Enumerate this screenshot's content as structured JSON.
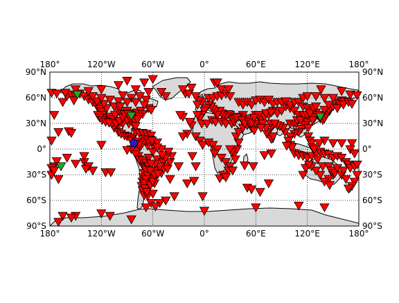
{
  "map": {
    "projection": "equirectangular",
    "ocean_color": "#ffffff",
    "land_color": "#d9d9d9",
    "coastline_color": "#000000",
    "grid": true,
    "lon_ticks": [
      {
        "lon": -180,
        "label": "180°"
      },
      {
        "lon": -120,
        "label": "120°W"
      },
      {
        "lon": -60,
        "label": "60°W"
      },
      {
        "lon": 0,
        "label": "0°"
      },
      {
        "lon": 60,
        "label": "60°E"
      },
      {
        "lon": 120,
        "label": "120°E"
      },
      {
        "lon": 180,
        "label": "180°"
      }
    ],
    "lat_ticks": [
      {
        "lat": 90,
        "label": "90°N"
      },
      {
        "lat": 60,
        "label": "60°N"
      },
      {
        "lat": 30,
        "label": "30°N"
      },
      {
        "lat": 0,
        "label": "0°"
      },
      {
        "lat": -30,
        "label": "30°S"
      },
      {
        "lat": -60,
        "label": "60°S"
      },
      {
        "lat": -90,
        "label": "90°S"
      }
    ]
  },
  "legend_colors": {
    "station_red": "#ff0000",
    "station_green": "#22aa22",
    "event_blue": "#1f1fcf"
  },
  "event": {
    "lon": -82,
    "lat": 7
  },
  "green_stations": [
    [
      -148,
      64
    ],
    [
      -85,
      39
    ],
    [
      135,
      38
    ],
    [
      -167,
      -20
    ]
  ],
  "red_stations": [
    [
      -165,
      55
    ],
    [
      -160,
      62
    ],
    [
      -155,
      64
    ],
    [
      -150,
      62
    ],
    [
      -145,
      65
    ],
    [
      -140,
      62
    ],
    [
      -135,
      58
    ],
    [
      -130,
      55
    ],
    [
      -125,
      50
    ],
    [
      -122,
      47
    ],
    [
      -120,
      44
    ],
    [
      -118,
      40
    ],
    [
      -116,
      36
    ],
    [
      -112,
      33
    ],
    [
      -110,
      38
    ],
    [
      -106,
      35
    ],
    [
      -104,
      40
    ],
    [
      -100,
      45
    ],
    [
      -96,
      42
    ],
    [
      -92,
      38
    ],
    [
      -90,
      45
    ],
    [
      -86,
      42
    ],
    [
      -82,
      40
    ],
    [
      -78,
      43
    ],
    [
      -74,
      45
    ],
    [
      -72,
      41
    ],
    [
      -76,
      38
    ],
    [
      -80,
      35
    ],
    [
      -84,
      33
    ],
    [
      -88,
      30
    ],
    [
      -95,
      30
    ],
    [
      -100,
      28
    ],
    [
      -105,
      25
    ],
    [
      -108,
      30
    ],
    [
      -114,
      48
    ],
    [
      -117,
      53
    ],
    [
      -125,
      56
    ],
    [
      -130,
      62
    ],
    [
      -120,
      60
    ],
    [
      -110,
      58
    ],
    [
      -100,
      56
    ],
    [
      -95,
      63
    ],
    [
      -85,
      60
    ],
    [
      -80,
      55
    ],
    [
      -75,
      62
    ],
    [
      -68,
      58
    ],
    [
      -65,
      48
    ],
    [
      -62,
      46
    ],
    [
      -70,
      52
    ],
    [
      -90,
      55
    ],
    [
      -105,
      50
    ],
    [
      -98,
      50
    ],
    [
      -90,
      34
    ],
    [
      -100,
      20
    ],
    [
      -97,
      18
    ],
    [
      -93,
      16
    ],
    [
      -90,
      15
    ],
    [
      -87,
      14
    ],
    [
      -84,
      12
    ],
    [
      -80,
      20
    ],
    [
      -76,
      19
    ],
    [
      -72,
      19
    ],
    [
      -67,
      18
    ],
    [
      -62,
      16
    ],
    [
      -63,
      11
    ],
    [
      -70,
      12
    ],
    [
      -75,
      9
    ],
    [
      -78,
      2
    ],
    [
      -79,
      -2
    ],
    [
      -77,
      -8
    ],
    [
      -75,
      -14
    ],
    [
      -71,
      -17
    ],
    [
      -70,
      -22
    ],
    [
      -70,
      -28
    ],
    [
      -71,
      -33
    ],
    [
      -72,
      -38
    ],
    [
      -73,
      -43
    ],
    [
      -72,
      -48
    ],
    [
      -70,
      -54
    ],
    [
      -66,
      -55
    ],
    [
      -60,
      -52
    ],
    [
      -65,
      -45
    ],
    [
      -65,
      -38
    ],
    [
      -62,
      -32
    ],
    [
      -58,
      -34
    ],
    [
      -55,
      -25
    ],
    [
      -50,
      -28
    ],
    [
      -47,
      -23
    ],
    [
      -44,
      -20
    ],
    [
      -40,
      -15
    ],
    [
      -38,
      -8
    ],
    [
      -42,
      -3
    ],
    [
      -50,
      0
    ],
    [
      -60,
      -3
    ],
    [
      -65,
      -10
    ],
    [
      -55,
      -12
    ],
    [
      -60,
      5
    ],
    [
      -55,
      8
    ],
    [
      -66,
      4
    ],
    [
      -58,
      -40
    ],
    [
      -52,
      -63
    ],
    [
      -62,
      -63
    ],
    [
      -57,
      -67
    ],
    [
      -45,
      -60
    ],
    [
      -35,
      -55
    ],
    [
      -68,
      -68
    ],
    [
      -85,
      -82
    ],
    [
      -110,
      -78
    ],
    [
      -120,
      -75
    ],
    [
      -150,
      -78
    ],
    [
      -155,
      -80
    ],
    [
      -165,
      -78
    ],
    [
      -170,
      -85
    ],
    [
      -175,
      40
    ],
    [
      -170,
      20
    ],
    [
      -158,
      21
    ],
    [
      -155,
      19
    ],
    [
      -160,
      -10
    ],
    [
      -150,
      -17
    ],
    [
      -140,
      -15
    ],
    [
      -130,
      -25
    ],
    [
      -120,
      5
    ],
    [
      -175,
      -20
    ],
    [
      -178,
      -30
    ],
    [
      -162,
      66
    ],
    [
      -152,
      57
    ],
    [
      -115,
      -27
    ],
    [
      -85,
      0
    ],
    [
      -90,
      -1
    ],
    [
      -55,
      2
    ],
    [
      -25,
      38
    ],
    [
      -20,
      18
    ],
    [
      -22,
      65
    ],
    [
      -18,
      65
    ],
    [
      -15,
      28
    ],
    [
      -10,
      15
    ],
    [
      -5,
      10
    ],
    [
      -2,
      5
    ],
    [
      5,
      8
    ],
    [
      10,
      5
    ],
    [
      15,
      0
    ],
    [
      12,
      -5
    ],
    [
      20,
      -10
    ],
    [
      25,
      -15
    ],
    [
      30,
      -20
    ],
    [
      28,
      -25
    ],
    [
      22,
      -30
    ],
    [
      18,
      -34
    ],
    [
      25,
      -33
    ],
    [
      35,
      -5
    ],
    [
      38,
      0
    ],
    [
      40,
      8
    ],
    [
      37,
      15
    ],
    [
      40,
      20
    ],
    [
      45,
      25
    ],
    [
      50,
      28
    ],
    [
      55,
      25
    ],
    [
      58,
      22
    ],
    [
      60,
      30
    ],
    [
      65,
      35
    ],
    [
      70,
      38
    ],
    [
      75,
      40
    ],
    [
      80,
      45
    ],
    [
      85,
      42
    ],
    [
      90,
      45
    ],
    [
      95,
      50
    ],
    [
      100,
      48
    ],
    [
      105,
      45
    ],
    [
      110,
      40
    ],
    [
      115,
      38
    ],
    [
      118,
      35
    ],
    [
      120,
      32
    ],
    [
      117,
      28
    ],
    [
      113,
      24
    ],
    [
      110,
      20
    ],
    [
      105,
      18
    ],
    [
      100,
      15
    ],
    [
      98,
      10
    ],
    [
      100,
      5
    ],
    [
      102,
      2
    ],
    [
      105,
      -5
    ],
    [
      110,
      -7
    ],
    [
      115,
      -8
    ],
    [
      120,
      -10
    ],
    [
      125,
      -8
    ],
    [
      130,
      -5
    ],
    [
      135,
      -3
    ],
    [
      140,
      -5
    ],
    [
      145,
      -6
    ],
    [
      150,
      -10
    ],
    [
      155,
      -8
    ],
    [
      160,
      -10
    ],
    [
      165,
      -15
    ],
    [
      168,
      -18
    ],
    [
      170,
      -22
    ],
    [
      175,
      -20
    ],
    [
      178,
      -18
    ],
    [
      -178,
      -22
    ],
    [
      -175,
      -25
    ],
    [
      178,
      -30
    ],
    [
      175,
      -38
    ],
    [
      172,
      -43
    ],
    [
      168,
      -46
    ],
    [
      150,
      -30
    ],
    [
      145,
      -35
    ],
    [
      140,
      -38
    ],
    [
      135,
      -30
    ],
    [
      130,
      -25
    ],
    [
      125,
      -20
    ],
    [
      118,
      -22
    ],
    [
      115,
      -30
    ],
    [
      122,
      -18
    ],
    [
      132,
      -12
    ],
    [
      138,
      -20
    ],
    [
      145,
      -20
    ],
    [
      148,
      -25
    ],
    [
      152,
      -28
    ],
    [
      155,
      -22
    ],
    [
      160,
      -30
    ],
    [
      165,
      -35
    ],
    [
      162,
      -25
    ],
    [
      146,
      -42
    ],
    [
      140,
      -68
    ],
    [
      110,
      -66
    ],
    [
      60,
      -68
    ],
    [
      0,
      -72
    ],
    [
      -2,
      -55
    ],
    [
      50,
      -45
    ],
    [
      55,
      -47
    ],
    [
      65,
      -50
    ],
    [
      75,
      -40
    ],
    [
      78,
      -5
    ],
    [
      70,
      -7
    ],
    [
      57,
      -20
    ],
    [
      47,
      -19
    ],
    [
      32,
      -3
    ],
    [
      30,
      0
    ],
    [
      36,
      -12
    ],
    [
      33,
      -25
    ],
    [
      60,
      40
    ],
    [
      50,
      36
    ],
    [
      45,
      40
    ],
    [
      40,
      38
    ],
    [
      30,
      40
    ],
    [
      28,
      41
    ],
    [
      25,
      38
    ],
    [
      22,
      40
    ],
    [
      20,
      42
    ],
    [
      18,
      45
    ],
    [
      15,
      40
    ],
    [
      12,
      45
    ],
    [
      10,
      47
    ],
    [
      8,
      50
    ],
    [
      5,
      52
    ],
    [
      2,
      48
    ],
    [
      0,
      45
    ],
    [
      -3,
      40
    ],
    [
      -5,
      37
    ],
    [
      -8,
      40
    ],
    [
      -3,
      55
    ],
    [
      -6,
      57
    ],
    [
      5,
      60
    ],
    [
      10,
      60
    ],
    [
      15,
      62
    ],
    [
      20,
      63
    ],
    [
      25,
      65
    ],
    [
      30,
      62
    ],
    [
      12,
      78
    ],
    [
      15,
      78
    ],
    [
      40,
      55
    ],
    [
      45,
      52
    ],
    [
      50,
      55
    ],
    [
      55,
      52
    ],
    [
      60,
      57
    ],
    [
      65,
      58
    ],
    [
      70,
      55
    ],
    [
      75,
      58
    ],
    [
      80,
      53
    ],
    [
      85,
      55
    ],
    [
      90,
      55
    ],
    [
      95,
      56
    ],
    [
      100,
      52
    ],
    [
      105,
      55
    ],
    [
      110,
      55
    ],
    [
      115,
      50
    ],
    [
      120,
      48
    ],
    [
      125,
      44
    ],
    [
      130,
      43
    ],
    [
      132,
      40
    ],
    [
      135,
      36
    ],
    [
      138,
      34
    ],
    [
      140,
      36
    ],
    [
      142,
      40
    ],
    [
      144,
      43
    ],
    [
      145,
      46
    ],
    [
      150,
      50
    ],
    [
      155,
      55
    ],
    [
      158,
      53
    ],
    [
      160,
      57
    ],
    [
      163,
      56
    ],
    [
      170,
      64
    ],
    [
      178,
      63
    ],
    [
      -178,
      66
    ],
    [
      -172,
      65
    ],
    [
      128,
      36
    ],
    [
      127,
      37
    ],
    [
      126,
      34
    ],
    [
      121,
      25
    ],
    [
      121,
      15
    ],
    [
      123,
      10
    ],
    [
      125,
      7
    ],
    [
      126,
      2
    ],
    [
      128,
      0
    ],
    [
      96,
      4
    ],
    [
      94,
      20
    ],
    [
      92,
      25
    ],
    [
      88,
      27
    ],
    [
      85,
      28
    ],
    [
      80,
      28
    ],
    [
      77,
      30
    ],
    [
      75,
      20
    ],
    [
      73,
      18
    ],
    [
      78,
      12
    ],
    [
      80,
      15
    ],
    [
      72,
      25
    ],
    [
      68,
      30
    ],
    [
      66,
      25
    ],
    [
      63,
      40
    ],
    [
      72,
      42
    ],
    [
      78,
      43
    ],
    [
      82,
      30
    ],
    [
      100,
      30
    ],
    [
      104,
      30
    ],
    [
      107,
      30
    ],
    [
      108,
      34
    ],
    [
      112,
      34
    ],
    [
      116,
      40
    ],
    [
      120,
      40
    ],
    [
      123,
      42
    ],
    [
      127,
      48
    ],
    [
      130,
      50
    ],
    [
      140,
      46
    ],
    [
      145,
      52
    ],
    [
      155,
      48
    ],
    [
      162,
      52
    ],
    [
      168,
      55
    ],
    [
      172,
      53
    ],
    [
      115,
      60
    ],
    [
      120,
      62
    ],
    [
      130,
      62
    ],
    [
      140,
      60
    ],
    [
      150,
      60
    ],
    [
      160,
      68
    ],
    [
      136,
      70
    ],
    [
      -40,
      -35
    ],
    [
      -30,
      -20
    ],
    [
      -14,
      -8
    ],
    [
      -10,
      -20
    ],
    [
      -20,
      -40
    ],
    [
      -12,
      -37
    ],
    [
      -25,
      15
    ],
    [
      -28,
      40
    ],
    [
      -17,
      32
    ],
    [
      -3,
      30
    ],
    [
      3,
      30
    ],
    [
      9,
      34
    ],
    [
      13,
      32
    ],
    [
      20,
      32
    ],
    [
      25,
      30
    ],
    [
      32,
      30
    ],
    [
      35,
      32
    ],
    [
      36,
      36
    ],
    [
      38,
      37
    ],
    [
      44,
      34
    ],
    [
      47,
      30
    ],
    [
      52,
      32
    ],
    [
      55,
      30
    ],
    [
      58,
      37
    ],
    [
      -8,
      52
    ],
    [
      -10,
      62
    ],
    [
      -25,
      70
    ],
    [
      -15,
      72
    ],
    [
      20,
      70
    ],
    [
      28,
      70
    ],
    [
      -45,
      62
    ],
    [
      -50,
      67
    ],
    [
      -70,
      78
    ],
    [
      -60,
      82
    ],
    [
      -90,
      80
    ],
    [
      -120,
      70
    ],
    [
      -135,
      68
    ],
    [
      -150,
      70
    ],
    [
      -100,
      75
    ],
    [
      -80,
      70
    ],
    [
      -65,
      67
    ],
    [
      -170,
      -35
    ],
    [
      -178,
      10
    ],
    [
      172,
      7
    ],
    [
      160,
      7
    ],
    [
      150,
      7
    ],
    [
      140,
      10
    ],
    [
      134,
      7
    ],
    [
      170,
      0
    ],
    [
      175,
      -5
    ],
    [
      -172,
      -14
    ],
    [
      -140,
      -8
    ],
    [
      -135,
      -20
    ],
    [
      -109,
      -27
    ],
    [
      -138,
      -23
    ],
    [
      -124,
      40
    ],
    [
      -122,
      37
    ],
    [
      -119,
      34
    ],
    [
      -115,
      32
    ],
    [
      -111,
      31
    ],
    [
      -103,
      30
    ],
    [
      -99,
      33
    ],
    [
      -95,
      37
    ],
    [
      -93,
      41
    ],
    [
      -89,
      41
    ],
    [
      -86,
      36
    ],
    [
      -82,
      28
    ],
    [
      -81,
      33
    ],
    [
      -78,
      35
    ],
    [
      -80,
      27
    ],
    [
      -83,
      9
    ],
    [
      -85,
      10
    ],
    [
      -79,
      9
    ],
    [
      -74,
      4
    ],
    [
      -69,
      9
    ],
    [
      -66,
      10
    ],
    [
      -61,
      10
    ],
    [
      -72,
      7
    ],
    [
      -76,
      5
    ],
    [
      -80,
      -6
    ],
    [
      -76,
      -12
    ],
    [
      -72,
      -13
    ],
    [
      -68,
      -16
    ],
    [
      -65,
      -20
    ],
    [
      -68,
      -24
    ],
    [
      -66,
      -31
    ],
    [
      -68,
      -35
    ],
    [
      -70,
      -40
    ],
    [
      -69,
      -46
    ],
    [
      -67,
      -50
    ],
    [
      -63,
      -42
    ],
    [
      -60,
      -38
    ],
    [
      -58,
      -30
    ],
    [
      -54,
      -29
    ],
    [
      -48,
      -15
    ],
    [
      -45,
      -10
    ],
    [
      -43,
      -23
    ],
    [
      -52,
      -20
    ],
    [
      -57,
      -17
    ],
    [
      -62,
      -17
    ],
    [
      -63,
      -25
    ],
    [
      -49,
      -7
    ]
  ]
}
